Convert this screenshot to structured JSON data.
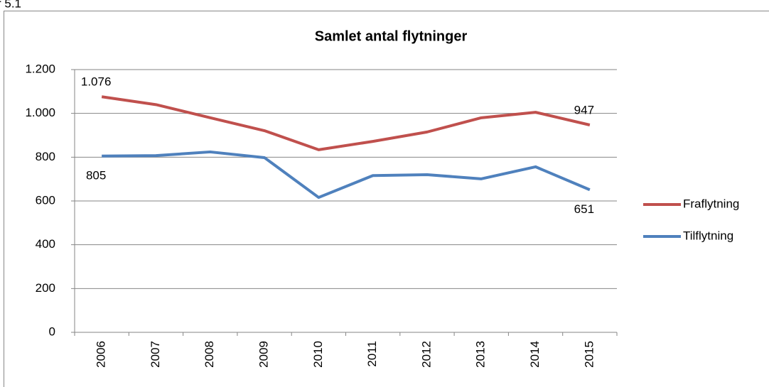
{
  "caption": "r 5.1",
  "chart_data": {
    "type": "line",
    "title": "Samlet antal flytninger",
    "categories": [
      "2006",
      "2007",
      "2008",
      "2009",
      "2010",
      "2011",
      "2012",
      "2013",
      "2014",
      "2015"
    ],
    "series": [
      {
        "name": "Fraflytning",
        "color": "#c0504d",
        "values": [
          1076,
          1040,
          980,
          921,
          834,
          872,
          915,
          980,
          1005,
          947
        ],
        "value_labels": [
          "1.076",
          null,
          null,
          null,
          null,
          null,
          null,
          null,
          null,
          "947"
        ]
      },
      {
        "name": "Tilflytning",
        "color": "#4f81bd",
        "values": [
          805,
          807,
          824,
          798,
          616,
          716,
          720,
          701,
          756,
          651
        ],
        "value_labels": [
          "805",
          null,
          null,
          null,
          null,
          null,
          null,
          null,
          null,
          "651"
        ]
      }
    ],
    "ylim": [
      0,
      1200
    ],
    "yticks": [
      0,
      200,
      400,
      600,
      800,
      {
        "value": 1000,
        "label": "1.000"
      },
      {
        "value": 1200,
        "label": "1.200"
      }
    ],
    "grid": true,
    "legend": "right"
  }
}
